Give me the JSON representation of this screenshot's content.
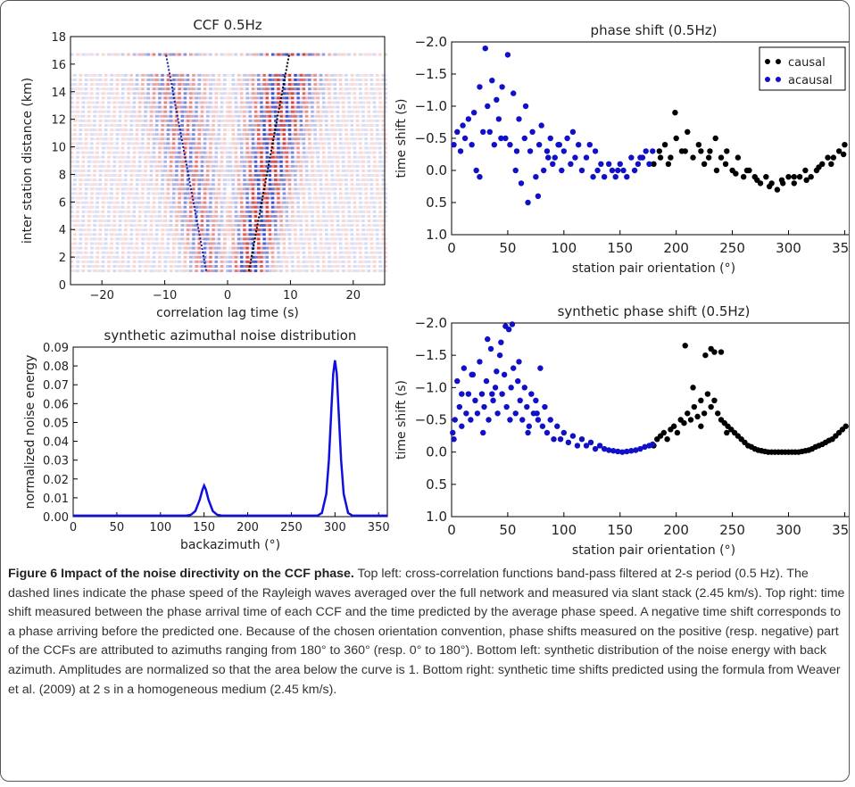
{
  "charts": {
    "ccf": {
      "title": "CCF 0.5Hz",
      "xlabel": "correlation lag time (s)",
      "ylabel": "inter station distance (km)"
    },
    "noise": {
      "title": "synthetic azimuthal noise distribution",
      "xlabel": "backazimuth (°)",
      "ylabel": "normalized noise energy"
    },
    "phase": {
      "title": "phase shift (0.5Hz)",
      "xlabel": "station pair orientation (°)",
      "ylabel": "time shift (s)"
    },
    "synth": {
      "title": "synthetic phase shift (0.5Hz)",
      "xlabel": "station pair orientation (°)",
      "ylabel": "time shift (s)"
    }
  },
  "colors": {
    "causal": "#000000",
    "acausal": "#1010c8",
    "noise_curve": "#1010dd",
    "ccf_pos": "#d02020",
    "ccf_neg": "#2030c0"
  },
  "chart_data": [
    {
      "type": "heatmap",
      "title": "CCF 0.5Hz",
      "xlabel": "correlation lag time (s)",
      "ylabel": "inter station distance (km)",
      "xlim": [
        -25,
        25
      ],
      "ylim": [
        0,
        18
      ],
      "xticks": [
        -20,
        -10,
        0,
        10,
        20
      ],
      "yticks": [
        0,
        2,
        4,
        6,
        8,
        10,
        12,
        14,
        16,
        18
      ],
      "moveout_lines": [
        {
          "x": [
            -3.4,
            -9.8
          ],
          "y": [
            1.0,
            16.7
          ]
        },
        {
          "x": [
            3.4,
            9.8
          ],
          "y": [
            1.0,
            16.7
          ]
        }
      ]
    },
    {
      "type": "line",
      "title": "synthetic azimuthal noise distribution",
      "xlabel": "backazimuth (°)",
      "ylabel": "normalized noise energy",
      "xlim": [
        0,
        360
      ],
      "ylim": [
        0,
        0.09
      ],
      "xticks": [
        0,
        50,
        100,
        150,
        200,
        250,
        300,
        350
      ],
      "yticks": [
        0.0,
        0.01,
        0.02,
        0.03,
        0.04,
        0.05,
        0.06,
        0.07,
        0.08,
        0.09
      ],
      "x": [
        0,
        130,
        135,
        140,
        145,
        148,
        150,
        152,
        155,
        160,
        165,
        170,
        280,
        285,
        290,
        293,
        296,
        298,
        300,
        302,
        304,
        307,
        310,
        315,
        320,
        360
      ],
      "y": [
        0.0005,
        0.0005,
        0.001,
        0.003,
        0.009,
        0.014,
        0.0165,
        0.0145,
        0.009,
        0.003,
        0.001,
        0.0005,
        0.0005,
        0.002,
        0.012,
        0.03,
        0.058,
        0.076,
        0.083,
        0.076,
        0.058,
        0.03,
        0.012,
        0.002,
        0.0005,
        0.0005
      ]
    },
    {
      "type": "scatter",
      "title": "phase shift (0.5Hz)",
      "xlabel": "station pair orientation (°)",
      "ylabel": "time shift (s)",
      "xlim": [
        0,
        360
      ],
      "ylim": [
        1.0,
        -2.0
      ],
      "xticks": [
        0,
        50,
        100,
        150,
        200,
        250,
        300,
        350
      ],
      "yticks": [
        -2.0,
        -1.5,
        -1.0,
        -0.5,
        0.0,
        0.5,
        1.0
      ],
      "legend": "top-right",
      "series": [
        {
          "name": "causal",
          "x": [
            180,
            185,
            190,
            195,
            200,
            205,
            210,
            215,
            220,
            225,
            230,
            235,
            240,
            245,
            250,
            255,
            260,
            265,
            270,
            275,
            280,
            285,
            290,
            295,
            300,
            305,
            310,
            315,
            320,
            325,
            330,
            335,
            340,
            345,
            350,
            355,
            358,
            199,
            208,
            236,
            222,
            263,
            272,
            283,
            294,
            305,
            316,
            327,
            338,
            349,
            186,
            193,
            244,
            229,
            253
          ],
          "y": [
            -0.1,
            -0.3,
            -0.4,
            -0.2,
            -0.5,
            -0.3,
            -0.6,
            -0.2,
            -0.4,
            -0.1,
            -0.3,
            -0.5,
            -0.2,
            -0.3,
            0.0,
            -0.2,
            0.1,
            0.0,
            0.1,
            0.2,
            0.1,
            0.2,
            0.3,
            0.2,
            0.1,
            0.2,
            0.1,
            0.0,
            0.1,
            0.0,
            -0.1,
            -0.2,
            -0.2,
            -0.3,
            -0.4,
            -0.5,
            -0.3,
            -0.9,
            -0.3,
            0.0,
            -0.3,
            0.0,
            0.15,
            0.25,
            0.15,
            0.1,
            0.15,
            -0.05,
            -0.1,
            -0.25,
            -0.2,
            -0.1,
            -0.1,
            -0.2,
            0.05
          ]
        },
        {
          "name": "acausal",
          "x": [
            2,
            5,
            8,
            12,
            15,
            18,
            20,
            22,
            25,
            28,
            30,
            32,
            34,
            36,
            38,
            40,
            42,
            45,
            48,
            50,
            52,
            55,
            58,
            60,
            62,
            65,
            68,
            70,
            72,
            75,
            78,
            80,
            82,
            85,
            88,
            90,
            92,
            95,
            98,
            100,
            103,
            106,
            110,
            113,
            116,
            120,
            123,
            126,
            130,
            133,
            136,
            140,
            143,
            146,
            150,
            153,
            156,
            160,
            163,
            166,
            170,
            173,
            176,
            179,
            10,
            25,
            44,
            57,
            66,
            77,
            86,
            96,
            108,
            128,
            148,
            168
          ],
          "y": [
            -0.4,
            -0.6,
            -0.3,
            -0.5,
            -0.8,
            -0.4,
            -0.9,
            0.0,
            -1.3,
            -0.6,
            -1.9,
            -1.0,
            -0.6,
            -1.4,
            -0.4,
            -1.1,
            -0.8,
            -1.3,
            -0.5,
            -1.8,
            -0.4,
            -1.2,
            -0.3,
            -0.8,
            0.2,
            -0.5,
            0.5,
            -0.3,
            -0.6,
            0.1,
            -0.4,
            -0.7,
            0.0,
            -0.3,
            -0.5,
            -0.1,
            -0.2,
            -0.4,
            0.0,
            -0.3,
            -0.5,
            -0.1,
            -0.2,
            -0.4,
            0.0,
            -0.2,
            -0.4,
            0.1,
            0.0,
            -0.1,
            0.1,
            -0.1,
            0.0,
            0.1,
            -0.1,
            0.0,
            0.1,
            -0.2,
            0.0,
            -0.1,
            -0.2,
            -0.3,
            -0.1,
            -0.3,
            -0.7,
            0.1,
            -0.5,
            0.0,
            -1.0,
            0.4,
            -0.2,
            -0.4,
            -0.6,
            -0.3,
            0.0,
            -0.2
          ]
        }
      ]
    },
    {
      "type": "scatter",
      "title": "synthetic phase shift (0.5Hz)",
      "xlabel": "station pair orientation (°)",
      "ylabel": "time shift (s)",
      "xlim": [
        0,
        360
      ],
      "ylim": [
        1.0,
        -2.0
      ],
      "xticks": [
        0,
        50,
        100,
        150,
        200,
        250,
        300,
        350
      ],
      "yticks": [
        -2.0,
        -1.5,
        -1.0,
        -0.5,
        0.0,
        0.5,
        1.0
      ],
      "series": [
        {
          "name": "causal",
          "x": [
            180,
            183,
            186,
            189,
            192,
            195,
            198,
            201,
            204,
            207,
            210,
            213,
            216,
            219,
            222,
            225,
            228,
            231,
            234,
            237,
            240,
            243,
            246,
            249,
            252,
            255,
            258,
            261,
            264,
            267,
            270,
            273,
            276,
            279,
            282,
            285,
            288,
            291,
            294,
            297,
            300,
            303,
            306,
            309,
            312,
            315,
            318,
            321,
            324,
            327,
            330,
            333,
            336,
            339,
            342,
            345,
            348,
            351,
            354,
            357,
            359,
            208,
            226,
            231,
            234,
            240,
            358,
            215,
            222,
            245
          ],
          "y": [
            -0.1,
            -0.2,
            -0.25,
            -0.3,
            -0.2,
            -0.35,
            -0.4,
            -0.3,
            -0.5,
            -0.45,
            -0.6,
            -0.5,
            -0.7,
            -0.55,
            -0.8,
            -0.6,
            -0.9,
            -0.7,
            -0.8,
            -0.6,
            -0.5,
            -0.45,
            -0.4,
            -0.35,
            -0.3,
            -0.25,
            -0.2,
            -0.15,
            -0.1,
            -0.08,
            -0.05,
            -0.03,
            -0.02,
            -0.01,
            0.0,
            0.0,
            0.0,
            0.0,
            0.0,
            0.0,
            0.0,
            0.0,
            0.0,
            0.0,
            -0.01,
            -0.02,
            -0.03,
            -0.05,
            -0.08,
            -0.1,
            -0.12,
            -0.15,
            -0.18,
            -0.2,
            -0.25,
            -0.3,
            -0.35,
            -0.4,
            -0.5,
            -0.6,
            -1.65,
            -1.65,
            -1.5,
            -1.6,
            -1.55,
            -1.55,
            -0.5,
            -1.0,
            -0.4,
            -0.3
          ]
        },
        {
          "name": "acausal",
          "x": [
            1,
            3,
            5,
            7,
            9,
            11,
            13,
            15,
            17,
            19,
            21,
            23,
            25,
            27,
            29,
            31,
            33,
            35,
            37,
            39,
            41,
            43,
            45,
            47,
            49,
            51,
            53,
            55,
            57,
            59,
            61,
            63,
            65,
            67,
            69,
            71,
            73,
            75,
            77,
            79,
            81,
            83,
            85,
            88,
            91,
            94,
            97,
            100,
            104,
            108,
            112,
            116,
            120,
            124,
            128,
            132,
            136,
            140,
            144,
            148,
            152,
            156,
            160,
            164,
            168,
            172,
            176,
            179,
            2,
            9,
            18,
            28,
            36,
            44,
            52,
            60,
            68,
            76,
            48,
            54,
            40,
            32
          ],
          "y": [
            -0.3,
            -0.5,
            -1.1,
            -0.7,
            -0.4,
            -1.3,
            -0.6,
            -0.9,
            -0.5,
            -1.2,
            -0.8,
            -0.6,
            -1.4,
            -0.9,
            -0.7,
            -1.1,
            -0.5,
            -1.6,
            -0.8,
            -1.0,
            -0.6,
            -1.5,
            -0.9,
            -1.2,
            -0.7,
            -1.9,
            -1.0,
            -1.3,
            -0.6,
            -1.1,
            -0.8,
            -0.5,
            -1.0,
            -0.7,
            -0.4,
            -0.9,
            -0.6,
            -0.8,
            -0.5,
            -1.3,
            -0.4,
            -0.7,
            -0.3,
            -0.5,
            -0.2,
            -0.4,
            -0.2,
            -0.3,
            -0.15,
            -0.25,
            -0.1,
            -0.2,
            -0.1,
            -0.15,
            -0.05,
            -0.1,
            -0.05,
            -0.03,
            -0.02,
            -0.01,
            0.0,
            -0.01,
            -0.02,
            -0.03,
            -0.05,
            -0.08,
            -0.1,
            -0.12,
            -0.2,
            -0.9,
            -1.2,
            -0.3,
            -0.9,
            -1.7,
            -0.5,
            -1.4,
            -0.3,
            -0.6,
            -1.95,
            -1.98,
            -1.25,
            -1.75
          ]
        }
      ]
    }
  ],
  "caption": {
    "label": "Figure 6 Impact of the noise directivity on the CCF phase.",
    "body": " Top left: cross-correlation functions band-pass filtered at 2-s period (0.5 Hz). The dashed lines indicate the phase speed of the Rayleigh waves averaged over the full network and measured via slant stack (2.45 km/s). Top right: time shift measured between the phase arrival time of each CCF and the time predicted by the average phase speed. A negative time shift corresponds to a phase arriving before the predicted one. Because of the chosen orientation convention, phase shifts measured on the positive (resp. negative) part of the CCFs are attributed to azimuths ranging from 180° to 360° (resp. 0° to 180°). Bottom left: synthetic distribution of the noise energy with back azimuth. Amplitudes are normalized so that the area below the curve is 1. Bottom right: synthetic time shifts predicted using the formula from Weaver et al. (2009) at 2 s in a homogeneous medium (2.45 km/s)."
  }
}
